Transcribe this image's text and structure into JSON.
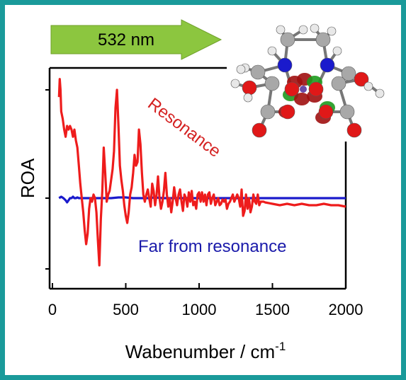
{
  "arrow": {
    "label": "532 nm",
    "color": "#8cc63f"
  },
  "chart_data": {
    "type": "line",
    "xlabel": "Wabenumber / cm",
    "xlabel_sup": "-1",
    "ylabel": "ROA",
    "xlim": [
      0,
      2000
    ],
    "ylim": [
      -1.0,
      1.6
    ],
    "xticks": [
      0,
      500,
      1000,
      1500,
      2000
    ],
    "yticks": [
      1.5,
      0,
      -1.0
    ],
    "tick_labels": [
      "0",
      "500",
      "1000",
      "1500",
      "2000"
    ],
    "annotations": [
      {
        "text": "Resonance",
        "color": "#d42020"
      },
      {
        "text": "Far from resonance",
        "color": "#1a1aaa"
      }
    ],
    "series": [
      {
        "color": "#ee1c1c",
        "x": [
          45,
          50,
          55,
          60,
          70,
          80,
          90,
          100,
          110,
          120,
          130,
          140,
          150,
          160,
          170,
          180,
          190,
          200,
          210,
          220,
          230,
          240,
          250,
          260,
          270,
          280,
          290,
          300,
          310,
          320,
          330,
          340,
          350,
          360,
          370,
          380,
          390,
          400,
          410,
          420,
          430,
          440,
          450,
          460,
          470,
          480,
          490,
          500,
          510,
          520,
          530,
          540,
          550,
          560,
          570,
          580,
          590,
          600,
          610,
          620,
          630,
          640,
          650,
          660,
          670,
          680,
          690,
          700,
          710,
          720,
          730,
          740,
          750,
          760,
          770,
          780,
          790,
          800,
          810,
          820,
          830,
          840,
          850,
          860,
          870,
          880,
          890,
          900,
          910,
          920,
          930,
          940,
          950,
          960,
          970,
          980,
          990,
          1000,
          1010,
          1020,
          1030,
          1040,
          1050,
          1060,
          1070,
          1080,
          1090,
          1100,
          1110,
          1120,
          1130,
          1140,
          1150,
          1160,
          1170,
          1180,
          1190,
          1200,
          1210,
          1220,
          1230,
          1240,
          1250,
          1260,
          1270,
          1280,
          1290,
          1300,
          1310,
          1320,
          1330,
          1340,
          1350,
          1360,
          1370,
          1380,
          1390,
          1400,
          1410,
          1420,
          1430,
          1440,
          1450,
          1500,
          1550,
          1600,
          1650,
          1700,
          1750,
          1800,
          1850,
          1900,
          1950,
          2000
        ],
        "y": [
          1.4,
          1.65,
          1.5,
          1.2,
          1.1,
          0.95,
          0.85,
          1.0,
          0.95,
          1.0,
          0.95,
          0.85,
          0.95,
          0.8,
          0.7,
          0.45,
          0.2,
          0.0,
          -0.2,
          -0.45,
          -0.65,
          -0.5,
          -0.15,
          0.0,
          -0.05,
          0.05,
          0.0,
          -0.2,
          -0.6,
          -0.95,
          -0.3,
          0.1,
          0.7,
          0.35,
          -0.05,
          0.05,
          0.1,
          0.25,
          0.4,
          0.65,
          1.25,
          1.5,
          1.0,
          0.45,
          0.25,
          0.1,
          -0.1,
          -0.25,
          -0.35,
          -0.2,
          0.05,
          0.15,
          0.35,
          0.6,
          0.45,
          0.5,
          0.95,
          0.75,
          0.35,
          0.05,
          -0.05,
          0.05,
          0.12,
          0.0,
          -0.12,
          0.2,
          0.1,
          -0.1,
          0.05,
          0.3,
          0.0,
          -0.15,
          -0.05,
          0.1,
          0.35,
          0.05,
          -0.12,
          0.0,
          -0.2,
          -0.05,
          0.15,
          0.0,
          -0.1,
          0.05,
          0.12,
          -0.05,
          -0.18,
          0.05,
          0.0,
          -0.12,
          0.08,
          -0.05,
          0.1,
          -0.1,
          -0.05,
          -0.15,
          0.05,
          0.08,
          -0.05,
          0.08,
          -0.05,
          0.05,
          -0.1,
          0.05,
          0.08,
          -0.08,
          0.0,
          0.05,
          -0.1,
          -0.05,
          0.0,
          -0.1,
          -0.08,
          -0.02,
          -0.05,
          -0.02,
          -0.15,
          -0.08,
          -0.05,
          0.0,
          0.05,
          -0.05,
          0.0,
          0.05,
          0.0,
          -0.12,
          0.12,
          -0.25,
          -0.18,
          0.05,
          -0.15,
          0.0,
          -0.2,
          -0.12,
          0.05,
          -0.05,
          -0.08,
          0.05,
          -0.1,
          -0.05,
          -0.05,
          -0.05,
          -0.06,
          -0.08,
          -0.1,
          -0.08,
          -0.1,
          -0.08,
          -0.1,
          -0.1,
          -0.08,
          -0.1,
          -0.1,
          -0.12
        ]
      },
      {
        "color": "#1a1acc",
        "x": [
          45,
          60,
          75,
          90,
          100,
          110,
          120,
          130,
          140,
          150,
          160,
          170,
          180,
          200,
          250,
          300,
          350,
          400,
          450,
          500,
          550,
          600,
          650,
          700,
          750,
          800,
          850,
          900,
          950,
          1000,
          1100,
          1200,
          1300,
          1400,
          1500,
          1600,
          1700,
          1800,
          1900,
          2000
        ],
        "y": [
          0.0,
          0.02,
          0.0,
          -0.03,
          -0.06,
          -0.03,
          0.0,
          0.0,
          0.02,
          0.0,
          0.0,
          0.01,
          0.0,
          0.0,
          0.0,
          0.0,
          0.0,
          0.0,
          0.01,
          0.01,
          0.0,
          0.0,
          0.0,
          0.01,
          0.0,
          0.0,
          0.0,
          0.0,
          0.0,
          0.0,
          0.0,
          0.0,
          0.0,
          0.0,
          0.0,
          0.0,
          0.0,
          0.0,
          0.0,
          0.0
        ]
      }
    ]
  },
  "molecule": {
    "atoms": [
      {
        "e": "H"
      },
      {
        "e": "H"
      },
      {
        "e": "H"
      },
      {
        "e": "H"
      },
      {
        "e": "C"
      },
      {
        "e": "C"
      },
      {
        "e": "H"
      },
      {
        "e": "H"
      },
      {
        "e": "N"
      },
      {
        "e": "N"
      },
      {
        "e": "H"
      },
      {
        "e": "C"
      },
      {
        "e": "C"
      },
      {
        "e": "C"
      },
      {
        "e": "C"
      },
      {
        "e": "O"
      },
      {
        "e": "O"
      },
      {
        "e": "H"
      },
      {
        "e": "H"
      },
      {
        "e": "O"
      },
      {
        "e": "O"
      },
      {
        "e": "O"
      },
      {
        "e": "O"
      },
      {
        "e": "C"
      },
      {
        "e": "C"
      },
      {
        "e": "O"
      },
      {
        "e": "O"
      },
      {
        "e": "H"
      },
      {
        "e": "H"
      },
      {
        "e": "H"
      }
    ],
    "colors": {
      "H": "#e8e8e8",
      "C": "#a8a8a8",
      "N": "#1a1acc",
      "O": "#e01818",
      "orbital_red": "#a01010",
      "orbital_green": "#1e9a1e"
    }
  }
}
